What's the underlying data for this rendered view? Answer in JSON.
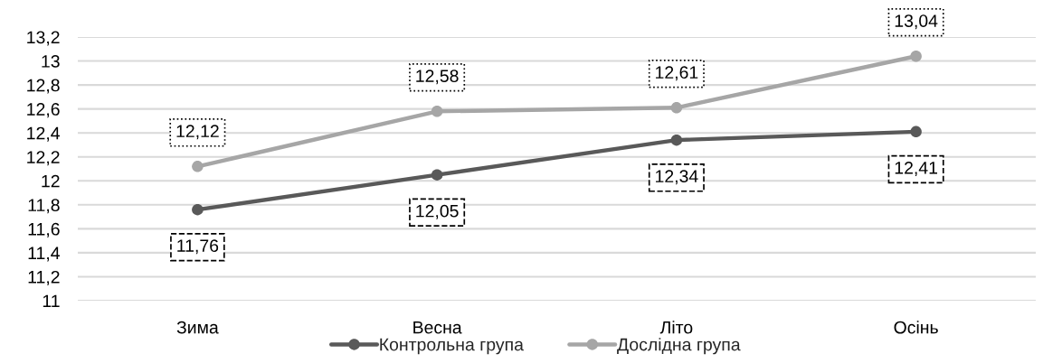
{
  "chart_data": {
    "type": "line",
    "categories": [
      "Зима",
      "Весна",
      "Літо",
      "Осінь"
    ],
    "series": [
      {
        "name": "Контрольна група",
        "color": "#595959",
        "values": [
          11.76,
          12.05,
          12.34,
          12.41
        ],
        "value_labels": [
          "11,76",
          "12,05",
          "12,34",
          "12,41"
        ]
      },
      {
        "name": "Дослідна група",
        "color": "#a6a6a6",
        "values": [
          12.12,
          12.58,
          12.61,
          13.04
        ],
        "value_labels": [
          "12,12",
          "12,58",
          "12,61",
          "13,04"
        ]
      }
    ],
    "ylim": [
      11,
      13.2
    ],
    "yticks": [
      11,
      {
        "value": 11.2,
        "label": "11,2"
      },
      {
        "value": 11.4,
        "label": "11,4"
      },
      {
        "value": 11.6,
        "label": "11,6"
      },
      {
        "value": 11.8,
        "label": "11,8"
      },
      12,
      {
        "value": 12.2,
        "label": "12,2"
      },
      {
        "value": 12.4,
        "label": "12,4"
      },
      {
        "value": 12.6,
        "label": "12,6"
      },
      {
        "value": 12.8,
        "label": "12,8"
      },
      13,
      {
        "value": 13.2,
        "label": "13,2"
      }
    ],
    "grid": "y",
    "legend": "bottom",
    "marker": "circle",
    "line_style": "solid"
  }
}
